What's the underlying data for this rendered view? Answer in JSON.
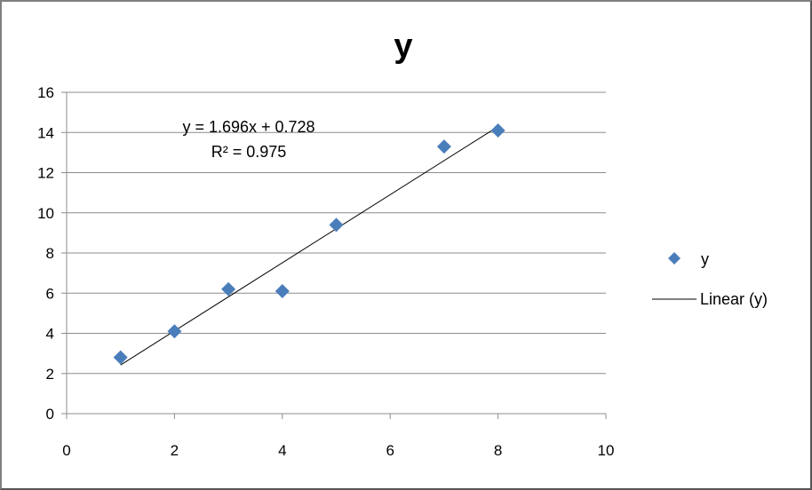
{
  "chart_data": {
    "type": "scatter",
    "title": "y",
    "xlabel": "",
    "ylabel": "",
    "xlim": [
      0,
      10
    ],
    "ylim": [
      0,
      16
    ],
    "x_ticks": [
      "0",
      "2",
      "4",
      "6",
      "8",
      "10"
    ],
    "y_ticks": [
      "0",
      "2",
      "4",
      "6",
      "8",
      "10",
      "12",
      "14",
      "16"
    ],
    "grid": "horizontal",
    "legend_position": "right",
    "series": [
      {
        "name": "y",
        "marker": "diamond",
        "color": "#4a7ebb",
        "points": [
          {
            "x": 1,
            "y": 2.8
          },
          {
            "x": 2,
            "y": 4.1
          },
          {
            "x": 3,
            "y": 6.2
          },
          {
            "x": 4,
            "y": 6.1
          },
          {
            "x": 5,
            "y": 9.4
          },
          {
            "x": 7,
            "y": 13.3
          },
          {
            "x": 8,
            "y": 14.1
          }
        ]
      }
    ],
    "trendline": {
      "name": "Linear (y)",
      "type": "linear",
      "slope": 1.696,
      "intercept": 0.728,
      "x_range": [
        1,
        8
      ],
      "color": "#000000"
    },
    "annotations": {
      "equation": "y = 1.696x + 0.728",
      "r_squared": "R² = 0.975"
    }
  }
}
